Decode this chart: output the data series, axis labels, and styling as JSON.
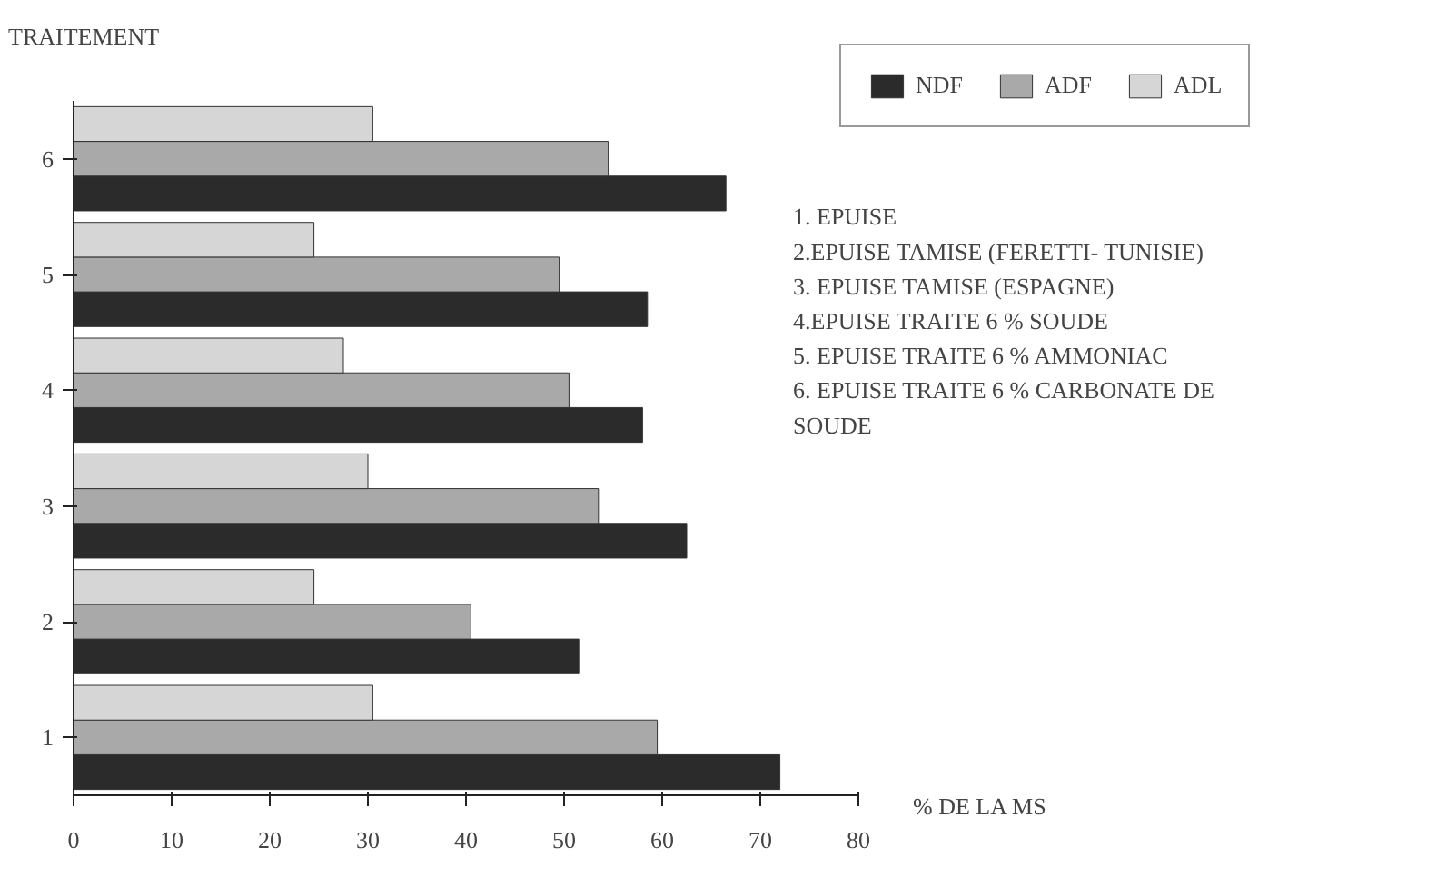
{
  "chart_data": {
    "type": "bar",
    "orientation": "horizontal",
    "ylabel": "TRAITEMENT",
    "xlabel": "% DE LA MS",
    "categories": [
      "6",
      "5",
      "4",
      "3",
      "2",
      "1"
    ],
    "series": [
      {
        "name": "NDF",
        "color": "#2b2b2b",
        "values": [
          66.5,
          58.5,
          58,
          62.5,
          51.5,
          72
        ]
      },
      {
        "name": "ADF",
        "color": "#a9a9a9",
        "values": [
          54.5,
          49.5,
          50.5,
          53.5,
          40.5,
          59.5
        ]
      },
      {
        "name": "ADL",
        "color": "#d6d6d6",
        "values": [
          30.5,
          24.5,
          27.5,
          30,
          24.5,
          30.5
        ]
      }
    ],
    "xlim": [
      0,
      80
    ],
    "xticks": [
      0,
      10,
      20,
      30,
      40,
      50,
      60,
      70,
      80
    ],
    "grid": false,
    "legend": "top right",
    "annotations": [
      "1. EPUISE",
      "2.EPUISE TAMISE (FERETTI- TUNISIE)",
      "3. EPUISE TAMISE (ESPAGNE)",
      "4.EPUISE TRAITE 6 % SOUDE",
      "5. EPUISE TRAITE 6 % AMMONIAC",
      "6. EPUISE TRAITE 6 % CARBONATE DE SOUDE"
    ]
  }
}
